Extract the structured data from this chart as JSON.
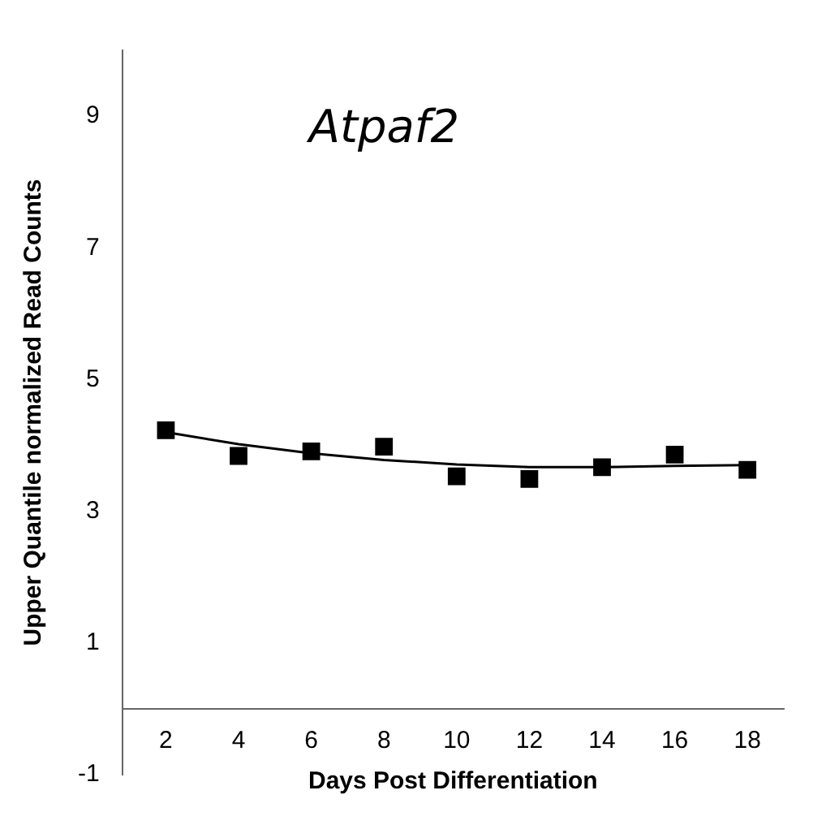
{
  "chart_data": {
    "type": "scatter",
    "title": "Atpaf2",
    "xlabel": "Days Post Differentiation",
    "ylabel": "Upper Quantile normalized Read Counts",
    "x": [
      2,
      4,
      6,
      8,
      10,
      12,
      14,
      16,
      18
    ],
    "series": [
      {
        "color": "#000000",
        "marker": "square",
        "values": [
          4.23,
          3.84,
          3.91,
          3.98,
          3.53,
          3.49,
          3.67,
          3.86,
          3.63
        ]
      },
      {
        "type": "line",
        "color": "#000000",
        "marker": "none",
        "line_style": "solid",
        "x": [
          2,
          4,
          6,
          8,
          10,
          12,
          14,
          16,
          18
        ],
        "values": [
          4.2,
          4.02,
          3.88,
          3.78,
          3.71,
          3.67,
          3.67,
          3.69,
          3.7
        ]
      }
    ],
    "xlim": [
      0.8,
      19
    ],
    "ylim": [
      -1,
      10
    ],
    "xticks": [
      2,
      4,
      6,
      8,
      10,
      12,
      14,
      16,
      18
    ],
    "yticks": [
      -1,
      1,
      3,
      5,
      7,
      9
    ],
    "grid": false,
    "legend": false
  }
}
